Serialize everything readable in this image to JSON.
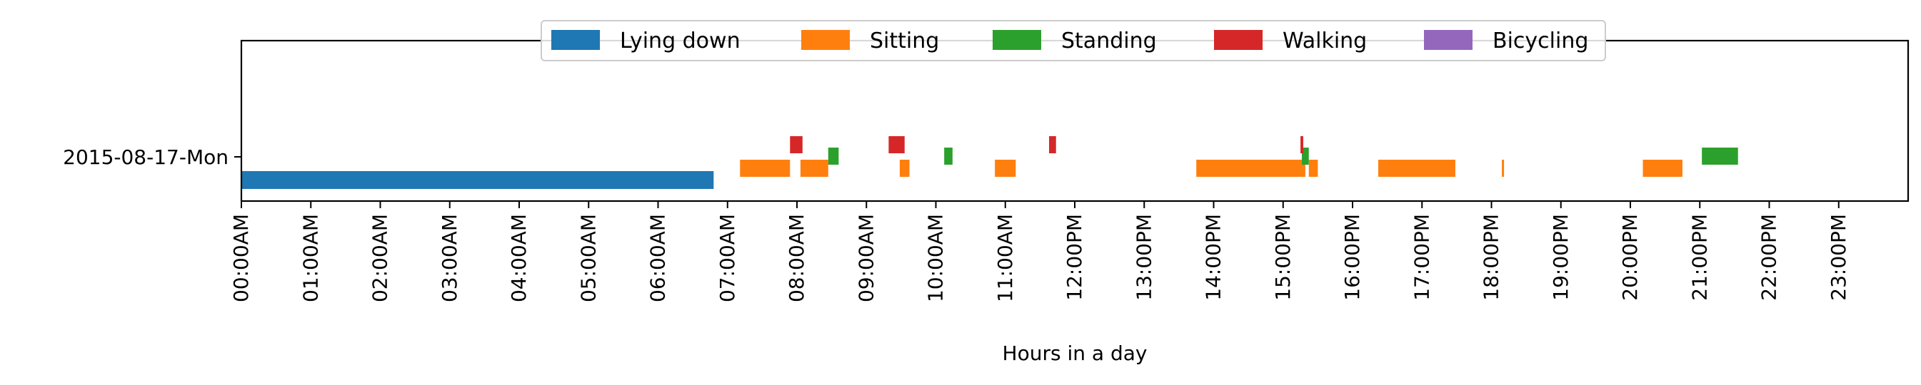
{
  "chart_data": {
    "type": "timeline",
    "xlabel": "Hours in a day",
    "xlim": [
      0,
      24
    ],
    "y_categories": [
      "2015-08-17-Mon"
    ],
    "x_ticks": [
      {
        "value": 0,
        "label": "00:00AM"
      },
      {
        "value": 1,
        "label": "01:00AM"
      },
      {
        "value": 2,
        "label": "02:00AM"
      },
      {
        "value": 3,
        "label": "03:00AM"
      },
      {
        "value": 4,
        "label": "04:00AM"
      },
      {
        "value": 5,
        "label": "05:00AM"
      },
      {
        "value": 6,
        "label": "06:00AM"
      },
      {
        "value": 7,
        "label": "07:00AM"
      },
      {
        "value": 8,
        "label": "08:00AM"
      },
      {
        "value": 9,
        "label": "09:00AM"
      },
      {
        "value": 10,
        "label": "10:00AM"
      },
      {
        "value": 11,
        "label": "11:00AM"
      },
      {
        "value": 12,
        "label": "12:00PM"
      },
      {
        "value": 13,
        "label": "13:00PM"
      },
      {
        "value": 14,
        "label": "14:00PM"
      },
      {
        "value": 15,
        "label": "15:00PM"
      },
      {
        "value": 16,
        "label": "16:00PM"
      },
      {
        "value": 17,
        "label": "17:00PM"
      },
      {
        "value": 18,
        "label": "18:00PM"
      },
      {
        "value": 19,
        "label": "19:00PM"
      },
      {
        "value": 20,
        "label": "20:00PM"
      },
      {
        "value": 21,
        "label": "21:00PM"
      },
      {
        "value": 22,
        "label": "22:00PM"
      },
      {
        "value": 23,
        "label": "23:00PM"
      }
    ],
    "legend": {
      "placement": "top-center"
    },
    "series": [
      {
        "name": "Lying down",
        "color": "#1f77b4",
        "segments": [
          [
            0.0,
            6.8
          ]
        ]
      },
      {
        "name": "Sitting",
        "color": "#ff7f0e",
        "segments": [
          [
            7.18,
            7.9
          ],
          [
            8.05,
            8.45
          ],
          [
            9.48,
            9.62
          ],
          [
            10.85,
            11.15
          ],
          [
            13.75,
            15.32
          ],
          [
            15.37,
            15.5
          ],
          [
            16.37,
            17.48
          ],
          [
            18.15,
            18.18
          ],
          [
            20.18,
            20.75
          ]
        ]
      },
      {
        "name": "Standing",
        "color": "#2ca02c",
        "segments": [
          [
            8.45,
            8.6
          ],
          [
            10.12,
            10.24
          ],
          [
            15.27,
            15.37
          ],
          [
            21.03,
            21.55
          ]
        ]
      },
      {
        "name": "Walking",
        "color": "#d62728",
        "segments": [
          [
            7.9,
            8.08
          ],
          [
            9.32,
            9.55
          ],
          [
            11.63,
            11.73
          ],
          [
            15.25,
            15.29
          ]
        ]
      },
      {
        "name": "Bicycling",
        "color": "#9467bd",
        "segments": []
      }
    ]
  }
}
